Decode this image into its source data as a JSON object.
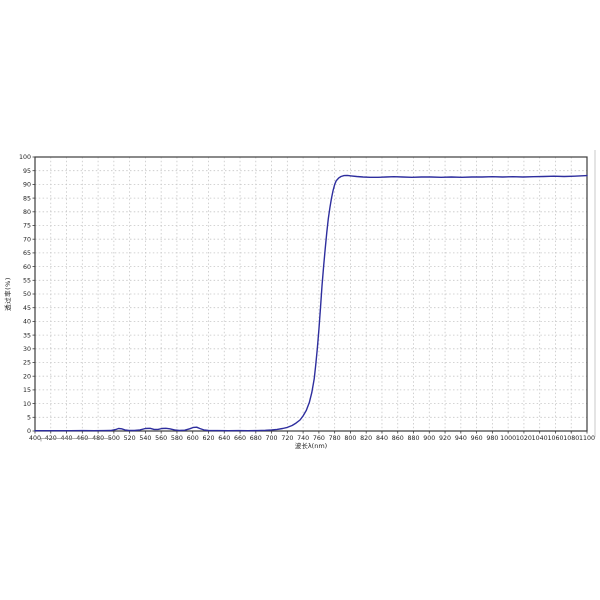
{
  "figure": {
    "background": "#ffffff"
  },
  "chart_data": {
    "type": "line",
    "title": "",
    "xlabel": "波长λ(nm)",
    "ylabel": "透过率(%)",
    "xlim": [
      400,
      1100
    ],
    "ylim": [
      0,
      100
    ],
    "x_tick_step": 20,
    "y_tick_step": 5,
    "grid": true,
    "grid_color": "#c6c6c6",
    "frame_color": "#3c3c3c",
    "line_color": "#2e2e9e",
    "tick_label_color": "#222222",
    "legend": "none",
    "series": [
      {
        "name": "transmission",
        "points": [
          [
            400,
            0.1
          ],
          [
            415,
            0.1
          ],
          [
            430,
            0.1
          ],
          [
            445,
            0.1
          ],
          [
            460,
            0.15
          ],
          [
            475,
            0.1
          ],
          [
            488,
            0.15
          ],
          [
            496,
            0.2
          ],
          [
            502,
            0.5
          ],
          [
            506,
            0.9
          ],
          [
            510,
            0.8
          ],
          [
            514,
            0.4
          ],
          [
            519,
            0.2
          ],
          [
            526,
            0.2
          ],
          [
            533,
            0.4
          ],
          [
            540,
            0.9
          ],
          [
            546,
            1.0
          ],
          [
            551,
            0.6
          ],
          [
            556,
            0.6
          ],
          [
            561,
            0.9
          ],
          [
            566,
            1.0
          ],
          [
            571,
            0.8
          ],
          [
            577,
            0.4
          ],
          [
            583,
            0.2
          ],
          [
            590,
            0.3
          ],
          [
            596,
            0.8
          ],
          [
            601,
            1.3
          ],
          [
            605,
            1.4
          ],
          [
            609,
            0.9
          ],
          [
            614,
            0.4
          ],
          [
            620,
            0.2
          ],
          [
            632,
            0.15
          ],
          [
            645,
            0.1
          ],
          [
            658,
            0.15
          ],
          [
            670,
            0.1
          ],
          [
            682,
            0.15
          ],
          [
            692,
            0.25
          ],
          [
            700,
            0.4
          ],
          [
            707,
            0.6
          ],
          [
            714,
            0.9
          ],
          [
            720,
            1.3
          ],
          [
            726,
            2.0
          ],
          [
            731,
            2.9
          ],
          [
            736,
            4.0
          ],
          [
            740,
            5.5
          ],
          [
            744,
            7.5
          ],
          [
            748,
            10.5
          ],
          [
            751,
            14
          ],
          [
            754,
            19
          ],
          [
            756,
            24
          ],
          [
            758,
            30
          ],
          [
            760,
            37
          ],
          [
            762,
            45
          ],
          [
            764,
            53
          ],
          [
            766,
            60
          ],
          [
            768,
            66.5
          ],
          [
            770,
            72.5
          ],
          [
            772,
            77.5
          ],
          [
            774,
            81.5
          ],
          [
            776,
            85
          ],
          [
            778,
            87.8
          ],
          [
            780,
            90
          ],
          [
            782,
            91.3
          ],
          [
            785,
            92.3
          ],
          [
            788,
            92.9
          ],
          [
            792,
            93.2
          ],
          [
            796,
            93.3
          ],
          [
            801,
            93.1
          ],
          [
            808,
            92.9
          ],
          [
            816,
            92.7
          ],
          [
            825,
            92.6
          ],
          [
            835,
            92.6
          ],
          [
            845,
            92.7
          ],
          [
            855,
            92.8
          ],
          [
            866,
            92.7
          ],
          [
            878,
            92.6
          ],
          [
            890,
            92.7
          ],
          [
            902,
            92.7
          ],
          [
            915,
            92.6
          ],
          [
            928,
            92.7
          ],
          [
            941,
            92.6
          ],
          [
            954,
            92.7
          ],
          [
            967,
            92.7
          ],
          [
            980,
            92.8
          ],
          [
            993,
            92.7
          ],
          [
            1006,
            92.8
          ],
          [
            1019,
            92.7
          ],
          [
            1032,
            92.8
          ],
          [
            1045,
            92.9
          ],
          [
            1058,
            93.0
          ],
          [
            1071,
            92.9
          ],
          [
            1084,
            93.0
          ],
          [
            1100,
            93.2
          ]
        ]
      }
    ]
  }
}
